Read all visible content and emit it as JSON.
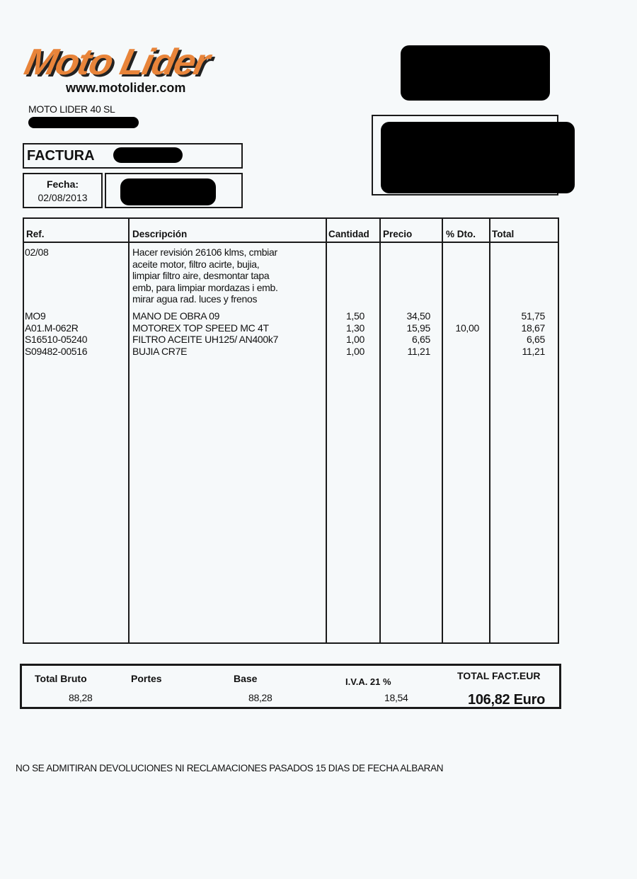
{
  "company": {
    "logo_text": "Moto Lider",
    "website": "www.motolider.com",
    "name": "MOTO LIDER 40 SL",
    "brand_color": "#e8843a"
  },
  "invoice": {
    "title": "FACTURA",
    "date_label": "Fecha:",
    "date": "02/08/2013"
  },
  "table": {
    "headers": [
      "Ref.",
      "Descripción",
      "Cantidad",
      "Precio",
      "% Dto.",
      "Total"
    ],
    "rows": [
      {
        "ref": "02/08",
        "desc": "Hacer revisión 26106 klms, cmbiar\naceite motor, filtro acirte, bujia,\nlimpiar filtro aire, desmontar tapa\nemb, para limpiar mordazas i emb.\nmirar agua rad. luces y frenos",
        "qty": "",
        "price": "",
        "disc": "",
        "total": ""
      },
      {
        "ref": "MO9",
        "desc": "MANO DE OBRA 09",
        "qty": "1,50",
        "price": "34,50",
        "disc": "",
        "total": "51,75"
      },
      {
        "ref": "A01.M-062R",
        "desc": "MOTOREX TOP SPEED MC 4T",
        "qty": "1,30",
        "price": "15,95",
        "disc": "10,00",
        "total": "18,67"
      },
      {
        "ref": "S16510-05240",
        "desc": "FILTRO ACEITE UH125/ AN400k7",
        "qty": "1,00",
        "price": "6,65",
        "disc": "",
        "total": "6,65"
      },
      {
        "ref": "S09482-00516",
        "desc": "BUJIA CR7E",
        "qty": "1,00",
        "price": "11,21",
        "disc": "",
        "total": "11,21"
      }
    ]
  },
  "totals": {
    "gross_label": "Total Bruto",
    "gross": "88,28",
    "shipping_label": "Portes",
    "base_label": "Base",
    "base": "88,28",
    "vat_label": "I.V.A. 21 %",
    "vat": "18,54",
    "total_label": "TOTAL FACT.EUR",
    "total": "106,82 Euro"
  },
  "footer": {
    "notice": "NO SE ADMITIRAN DEVOLUCIONES NI RECLAMACIONES PASADOS 15 DIAS DE FECHA ALBARAN"
  }
}
